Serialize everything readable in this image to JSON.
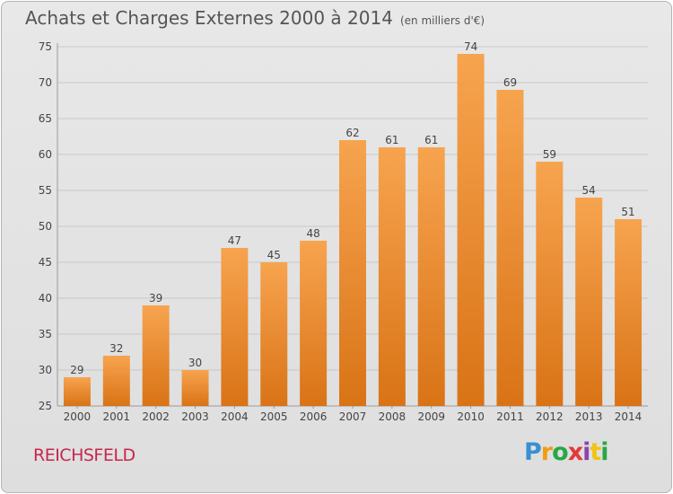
{
  "header": {
    "title": "Achats et Charges Externes 2000 à 2014",
    "subtitle": "(en milliers d'€)"
  },
  "footer": {
    "place": "REICHSFELD",
    "logo": "Proxiti",
    "logo_colors": [
      "#3a8fd1",
      "#f39c12",
      "#27a844",
      "#e23a3a",
      "#8e44ad",
      "#f1c40f",
      "#27a844"
    ]
  },
  "colors": {
    "bar_top": "#f7a44f",
    "bar_bottom": "#d97316",
    "grid": "#c8c8c8",
    "axis_text": "#444444"
  },
  "chart_data": {
    "type": "bar",
    "title": "Achats et Charges Externes 2000 à 2014",
    "subtitle": "(en milliers d'€)",
    "categories": [
      "2000",
      "2001",
      "2002",
      "2003",
      "2004",
      "2005",
      "2006",
      "2007",
      "2008",
      "2009",
      "2010",
      "2011",
      "2012",
      "2013",
      "2014"
    ],
    "values": [
      29,
      32,
      39,
      30,
      47,
      45,
      48,
      62,
      61,
      61,
      74,
      69,
      59,
      54,
      51
    ],
    "ylim": [
      25,
      75
    ],
    "yticks": [
      25,
      30,
      35,
      40,
      45,
      50,
      55,
      60,
      65,
      70,
      75
    ],
    "grid": true,
    "data_labels": true
  }
}
